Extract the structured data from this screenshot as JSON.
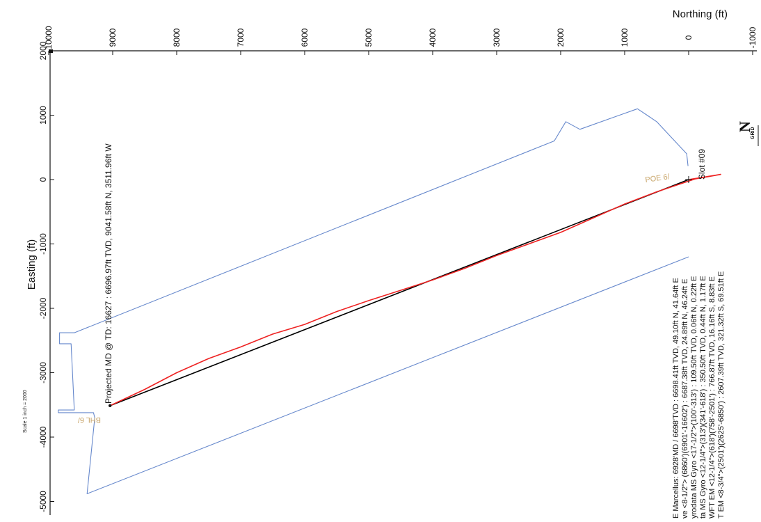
{
  "chart_data": {
    "type": "line",
    "xlabel": "Northing (ft)",
    "ylabel": "Easting (ft)",
    "x_ticks": [
      10000,
      9000,
      8000,
      7000,
      6000,
      5000,
      4000,
      3000,
      2000,
      1000,
      0,
      -1000
    ],
    "y_ticks": [
      2000,
      1000,
      0,
      -1000,
      -2000,
      -3000,
      -4000,
      -5000
    ],
    "x_tick_labels": [
      "10000",
      "9000",
      "8000",
      "7000",
      "6000",
      "5000",
      "4000",
      "3000",
      "2000",
      "1000",
      "0",
      "-1000"
    ],
    "y_tick_labels": [
      "2000",
      "1000",
      "0",
      "-1000",
      "-2000",
      "-3000",
      "-4000",
      "-5000"
    ],
    "xlim": [
      10000,
      -1000
    ],
    "ylim": [
      2000,
      -5000
    ],
    "grid": false,
    "series": [
      {
        "name": "",
        "color": "#000000",
        "points": [
          [
            0,
            0
          ],
          [
            9041.58,
            -3511.96
          ]
        ]
      },
      {
        "name": "",
        "color": "#ee2222",
        "points": [
          [
            0,
            0
          ],
          [
            -500,
            80
          ],
          [
            -100,
            10
          ],
          [
            500,
            -190
          ],
          [
            1000,
            -380
          ],
          [
            1500,
            -600
          ],
          [
            2000,
            -820
          ],
          [
            2500,
            -1000
          ],
          [
            3000,
            -1180
          ],
          [
            3500,
            -1380
          ],
          [
            4000,
            -1560
          ],
          [
            4500,
            -1720
          ],
          [
            5000,
            -1880
          ],
          [
            5500,
            -2050
          ],
          [
            6000,
            -2250
          ],
          [
            6500,
            -2400
          ],
          [
            7000,
            -2600
          ],
          [
            7500,
            -2780
          ],
          [
            8000,
            -3000
          ],
          [
            8500,
            -3260
          ],
          [
            9041.58,
            -3511.96
          ]
        ]
      },
      {
        "name": "",
        "color": "#6688cc",
        "points": [
          [
            10,
            210
          ],
          [
            30,
            400
          ],
          [
            500,
            900
          ],
          [
            650,
            1000
          ],
          [
            800,
            1100
          ],
          [
            1700,
            780
          ],
          [
            1920,
            900
          ],
          [
            2100,
            600
          ],
          [
            9600,
            -2380
          ],
          [
            9830,
            -2380
          ],
          [
            9830,
            -2550
          ],
          [
            9650,
            -2550
          ],
          [
            9600,
            -3580
          ],
          [
            9850,
            -3580
          ],
          [
            9850,
            -3620
          ],
          [
            9300,
            -3620
          ],
          [
            9280,
            -3700
          ],
          [
            9400,
            -4880
          ],
          [
            0,
            -1200
          ]
        ]
      }
    ],
    "annotations": {
      "projected": "Projected MD @ TD: 16627 : 6696.97ft TVD, 9041.58ft N, 3511.96ft W",
      "slot": "Slot #09",
      "poe": "POE 6/",
      "bhl": "BHL 6/",
      "scale": "Scale 1 inch = 2000",
      "north_letter": "N",
      "north_grid": "GRID",
      "legend_lines": [
        "E Marcellus: 6928'MD / 6698'TVD : 6698.41ft TVD, 49.10ft N, 41.64ft E",
        "ve <8-1/2\"> (6860')(6901'-16602') : 6687.38ft TVD, 24.89ft N, 46.24ft E",
        "yrodata MS Gyro <17-1/2\">(100'-313') : 109.50ft TVD, 0.06ft N, 0.22ft E",
        "ta MS Gyro <12-1/4\">(313')(341'-618') : 350.50ft TVD, 0.44ft N, 1.17ft E",
        "WFT EM <12-1/4\">(618')(758'-2501') : 766.87ft TVD, 16.16ft S, 8.83ft E",
        "T EM <8-3/4\">(2501')(2625'-6850') : 2607.39ft TVD, 321.32ft S, 69.51ft E"
      ]
    }
  }
}
